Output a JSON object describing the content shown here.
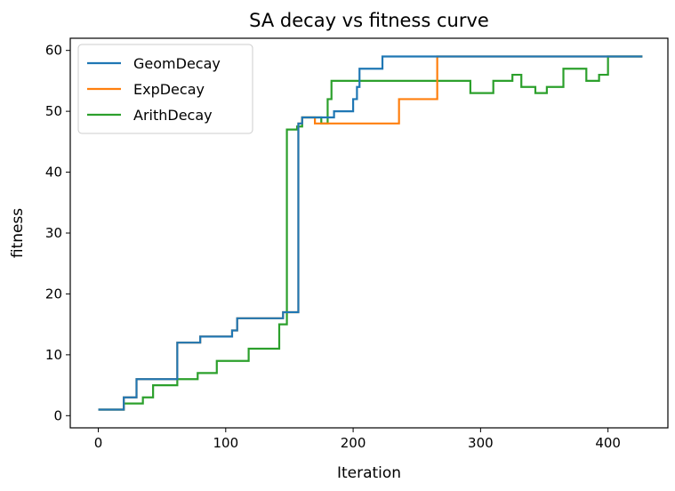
{
  "chart_data": {
    "type": "line",
    "title": "SA decay vs fitness curve",
    "xlabel": "Iteration",
    "ylabel": "fitness",
    "xlim": [
      -22,
      447
    ],
    "ylim": [
      -2,
      62
    ],
    "xticks": [
      0,
      100,
      200,
      300,
      400
    ],
    "yticks": [
      0,
      10,
      20,
      30,
      40,
      50,
      60
    ],
    "legend_position": "upper-left",
    "grid": false,
    "step": "post",
    "series": [
      {
        "name": "GeomDecay",
        "color": "#1f77b4",
        "points": [
          [
            0,
            1
          ],
          [
            20,
            1
          ],
          [
            20,
            3
          ],
          [
            30,
            3
          ],
          [
            30,
            6
          ],
          [
            62,
            6
          ],
          [
            62,
            12
          ],
          [
            80,
            12
          ],
          [
            80,
            13
          ],
          [
            105,
            13
          ],
          [
            105,
            14
          ],
          [
            109,
            14
          ],
          [
            109,
            16
          ],
          [
            145,
            16
          ],
          [
            145,
            17
          ],
          [
            157,
            17
          ],
          [
            157,
            48
          ],
          [
            160,
            48
          ],
          [
            160,
            49
          ],
          [
            185,
            49
          ],
          [
            185,
            50
          ],
          [
            200,
            50
          ],
          [
            200,
            52
          ],
          [
            203,
            52
          ],
          [
            203,
            54
          ],
          [
            205,
            54
          ],
          [
            205,
            57
          ],
          [
            223,
            57
          ],
          [
            223,
            59
          ],
          [
            427,
            59
          ]
        ]
      },
      {
        "name": "ExpDecay",
        "color": "#ff7f0e",
        "points": [
          [
            0,
            1
          ],
          [
            20,
            1
          ],
          [
            20,
            3
          ],
          [
            30,
            3
          ],
          [
            30,
            6
          ],
          [
            62,
            6
          ],
          [
            62,
            12
          ],
          [
            80,
            12
          ],
          [
            80,
            13
          ],
          [
            105,
            13
          ],
          [
            105,
            14
          ],
          [
            109,
            14
          ],
          [
            109,
            16
          ],
          [
            145,
            16
          ],
          [
            145,
            17
          ],
          [
            157,
            17
          ],
          [
            157,
            48
          ],
          [
            160,
            48
          ],
          [
            160,
            49
          ],
          [
            170,
            49
          ],
          [
            170,
            48
          ],
          [
            236,
            48
          ],
          [
            236,
            52
          ],
          [
            266,
            52
          ],
          [
            266,
            59
          ],
          [
            427,
            59
          ]
        ]
      },
      {
        "name": "ArithDecay",
        "color": "#2ca02c",
        "points": [
          [
            0,
            1
          ],
          [
            20,
            1
          ],
          [
            20,
            2
          ],
          [
            35,
            2
          ],
          [
            35,
            3
          ],
          [
            43,
            3
          ],
          [
            43,
            5
          ],
          [
            62,
            5
          ],
          [
            62,
            6
          ],
          [
            78,
            6
          ],
          [
            78,
            7
          ],
          [
            93,
            7
          ],
          [
            93,
            9
          ],
          [
            118,
            9
          ],
          [
            118,
            11
          ],
          [
            142,
            11
          ],
          [
            142,
            15
          ],
          [
            148,
            15
          ],
          [
            148,
            47
          ],
          [
            156,
            47
          ],
          [
            156,
            47.5
          ],
          [
            160,
            47.5
          ],
          [
            160,
            49
          ],
          [
            175,
            49
          ],
          [
            175,
            48
          ],
          [
            180,
            48
          ],
          [
            180,
            52
          ],
          [
            183,
            52
          ],
          [
            183,
            55
          ],
          [
            292,
            55
          ],
          [
            292,
            53
          ],
          [
            310,
            53
          ],
          [
            310,
            55
          ],
          [
            325,
            55
          ],
          [
            325,
            56
          ],
          [
            332,
            56
          ],
          [
            332,
            54
          ],
          [
            343,
            54
          ],
          [
            343,
            53
          ],
          [
            352,
            53
          ],
          [
            352,
            54
          ],
          [
            365,
            54
          ],
          [
            365,
            57
          ],
          [
            383,
            57
          ],
          [
            383,
            55
          ],
          [
            393,
            55
          ],
          [
            393,
            56
          ],
          [
            400,
            56
          ],
          [
            400,
            59
          ],
          [
            427,
            59
          ]
        ]
      }
    ]
  }
}
